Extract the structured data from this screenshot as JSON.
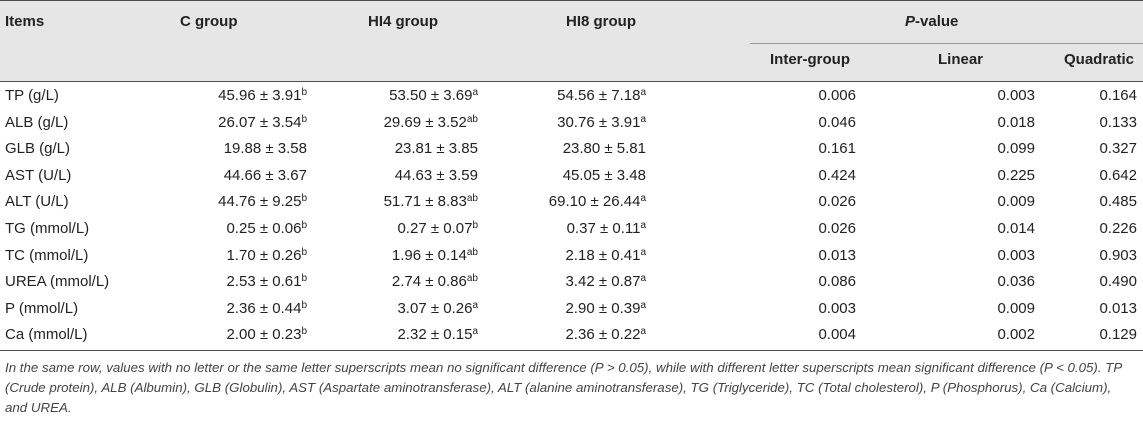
{
  "header": {
    "items": "Items",
    "c_group": "C group",
    "hi4_group": "HI4 group",
    "hi8_group": "HI8 group",
    "pvalue_prefix": "P",
    "pvalue_suffix": "-value",
    "inter_group": "Inter-group",
    "linear": "Linear",
    "quadratic": "Quadratic"
  },
  "rows": [
    {
      "item": "TP (g/L)",
      "c": "45.96 ± 3.91",
      "c_sup": "b",
      "hi4": "53.50 ± 3.69",
      "hi4_sup": "a",
      "hi8": "54.56 ± 7.18",
      "hi8_sup": "a",
      "inter": "0.006",
      "linear": "0.003",
      "quadratic": "0.164"
    },
    {
      "item": "ALB (g/L)",
      "c": "26.07 ± 3.54",
      "c_sup": "b",
      "hi4": "29.69 ± 3.52",
      "hi4_sup": "ab",
      "hi8": "30.76 ± 3.91",
      "hi8_sup": "a",
      "inter": "0.046",
      "linear": "0.018",
      "quadratic": "0.133"
    },
    {
      "item": "GLB (g/L)",
      "c": "19.88 ± 3.58",
      "c_sup": "",
      "hi4": "23.81 ± 3.85",
      "hi4_sup": "",
      "hi8": "23.80 ± 5.81",
      "hi8_sup": "",
      "inter": "0.161",
      "linear": "0.099",
      "quadratic": "0.327"
    },
    {
      "item": "AST (U/L)",
      "c": "44.66 ± 3.67",
      "c_sup": "",
      "hi4": "44.63 ± 3.59",
      "hi4_sup": "",
      "hi8": "45.05 ± 3.48",
      "hi8_sup": "",
      "inter": "0.424",
      "linear": "0.225",
      "quadratic": "0.642"
    },
    {
      "item": "ALT (U/L)",
      "c": "44.76 ± 9.25",
      "c_sup": "b",
      "hi4": "51.71 ± 8.83",
      "hi4_sup": "ab",
      "hi8": "69.10 ± 26.44",
      "hi8_sup": "a",
      "inter": "0.026",
      "linear": "0.009",
      "quadratic": "0.485"
    },
    {
      "item": "TG (mmol/L)",
      "c": "0.25 ± 0.06",
      "c_sup": "b",
      "hi4": "0.27 ± 0.07",
      "hi4_sup": "b",
      "hi8": "0.37 ± 0.11",
      "hi8_sup": "a",
      "inter": "0.026",
      "linear": "0.014",
      "quadratic": "0.226"
    },
    {
      "item": "TC (mmol/L)",
      "c": "1.70 ± 0.26",
      "c_sup": "b",
      "hi4": "1.96 ± 0.14",
      "hi4_sup": "ab",
      "hi8": "2.18 ± 0.41",
      "hi8_sup": "a",
      "inter": "0.013",
      "linear": "0.003",
      "quadratic": "0.903"
    },
    {
      "item": "UREA (mmol/L)",
      "c": "2.53 ± 0.61",
      "c_sup": "b",
      "hi4": "2.74 ± 0.86",
      "hi4_sup": "ab",
      "hi8": "3.42 ± 0.87",
      "hi8_sup": "a",
      "inter": "0.086",
      "linear": "0.036",
      "quadratic": "0.490"
    },
    {
      "item": "P (mmol/L)",
      "c": "2.36 ± 0.44",
      "c_sup": "b",
      "hi4": "3.07 ± 0.26",
      "hi4_sup": "a",
      "hi8": "2.90 ± 0.39",
      "hi8_sup": "a",
      "inter": "0.003",
      "linear": "0.009",
      "quadratic": "0.013"
    },
    {
      "item": "Ca (mmol/L)",
      "c": "2.00 ± 0.23",
      "c_sup": "b",
      "hi4": "2.32 ± 0.15",
      "hi4_sup": "a",
      "hi8": "2.36 ± 0.22",
      "hi8_sup": "a",
      "inter": "0.004",
      "linear": "0.002",
      "quadratic": "0.129"
    }
  ],
  "footnote": "In the same row, values with no letter or the same letter superscripts mean no significant difference (P > 0.05), while with different letter superscripts mean significant difference (P < 0.05). TP (Crude protein), ALB (Albumin), GLB (Globulin), AST (Aspartate aminotransferase), ALT (alanine aminotransferase), TG (Triglyceride), TC (Total cholesterol), P (Phosphorus), Ca (Calcium), and UREA."
}
